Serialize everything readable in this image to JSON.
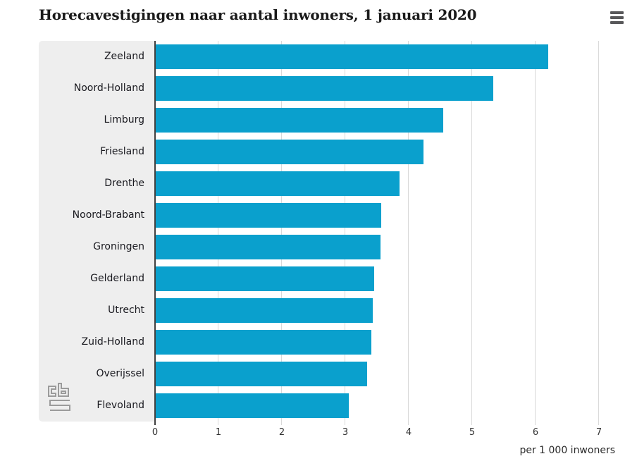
{
  "header": {
    "title": "Horecavestigingen naar aantal inwoners, 1 januari 2020"
  },
  "icons": {
    "menu": "hamburger-icon",
    "logo": "cbs-logo-icon"
  },
  "colors": {
    "background": "#FFFFFF",
    "bar": "#0AA0CD",
    "panel_bg": "#EEEEEE",
    "axis_line": "#404040",
    "gridline": "#D9D9D9",
    "title_text": "#1A1A1A",
    "label_text": "#19191F",
    "tick_text": "#333333",
    "menu_icon": "#58585A",
    "logo_stroke": "#9B9B9B"
  },
  "chart_data": {
    "type": "bar",
    "orientation": "horizontal",
    "title": "Horecavestigingen naar aantal inwoners, 1 januari 2020",
    "categories": [
      "Zeeland",
      "Noord-Holland",
      "Limburg",
      "Friesland",
      "Drenthe",
      "Noord-Brabant",
      "Groningen",
      "Gelderland",
      "Utrecht",
      "Zuid-Holland",
      "Overijssel",
      "Flevoland"
    ],
    "values": [
      6.2,
      5.33,
      4.54,
      4.23,
      3.86,
      3.57,
      3.55,
      3.46,
      3.43,
      3.41,
      3.34,
      3.06
    ],
    "xlabel": "per 1 000 inwoners",
    "ylabel": "",
    "xlim": [
      0,
      7
    ],
    "xticks": [
      0,
      1,
      2,
      3,
      4,
      5,
      6,
      7
    ],
    "grid": true,
    "legend": false,
    "bar_color": "#0AA0CD"
  }
}
